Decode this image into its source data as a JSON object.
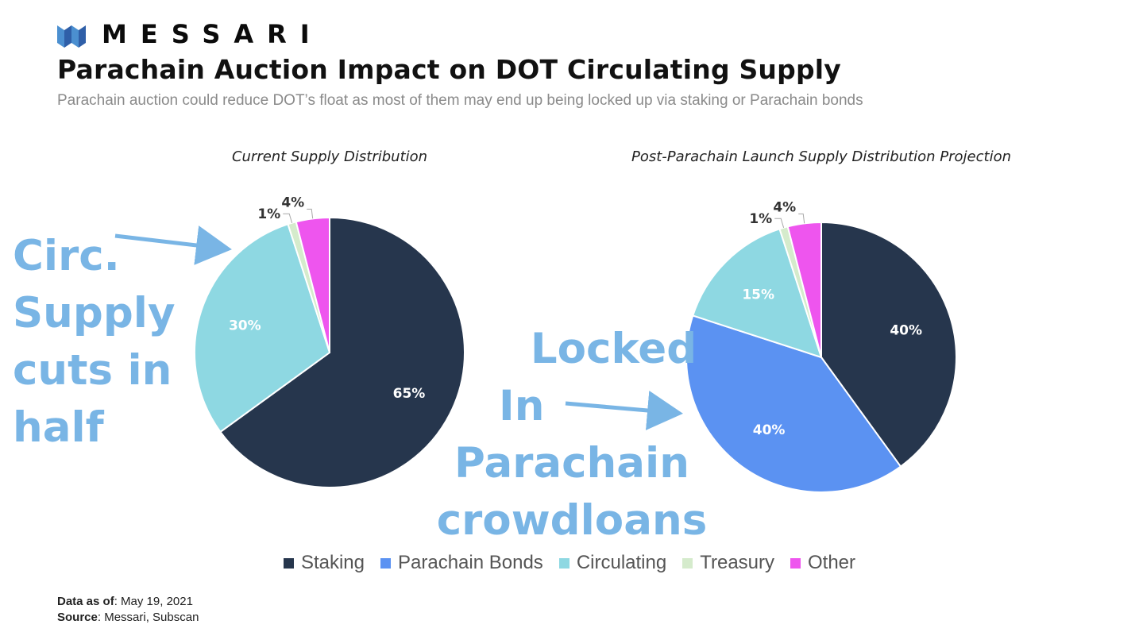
{
  "header": {
    "brand": "MESSARI",
    "title": "Parachain Auction Impact on DOT Circulating Supply",
    "subtitle": "Parachain auction could reduce DOT’s float as most of them may end up being locked up via staking or Parachain bonds"
  },
  "colors": {
    "Staking": "#26364d",
    "Parachain Bonds": "#5b92f2",
    "Circulating": "#8ed8e2",
    "Treasury": "#d5ebcc",
    "Other": "#ee55ee",
    "brand": "#4b8fd0",
    "annotation": "#79b5e5"
  },
  "chart_data": [
    {
      "type": "pie",
      "title": "Current Supply Distribution",
      "slices": [
        {
          "label": "Staking",
          "value": 65,
          "data_label": "65%"
        },
        {
          "label": "Parachain Bonds",
          "value": 0,
          "data_label": ""
        },
        {
          "label": "Circulating",
          "value": 30,
          "data_label": "30%"
        },
        {
          "label": "Treasury",
          "value": 1,
          "data_label": "1%"
        },
        {
          "label": "Other",
          "value": 4,
          "data_label": "4%"
        }
      ],
      "legend_placement": "bottom"
    },
    {
      "type": "pie",
      "title": "Post-Parachain Launch Supply Distribution Projection",
      "slices": [
        {
          "label": "Staking",
          "value": 40,
          "data_label": "40%"
        },
        {
          "label": "Parachain Bonds",
          "value": 40,
          "data_label": "40%"
        },
        {
          "label": "Circulating",
          "value": 15,
          "data_label": "15%"
        },
        {
          "label": "Treasury",
          "value": 1,
          "data_label": "1%"
        },
        {
          "label": "Other",
          "value": 4,
          "data_label": "4%"
        }
      ],
      "legend_placement": "bottom"
    }
  ],
  "legend": [
    {
      "label": "Staking"
    },
    {
      "label": "Parachain Bonds"
    },
    {
      "label": "Circulating"
    },
    {
      "label": "Treasury"
    },
    {
      "label": "Other"
    }
  ],
  "annotations": {
    "left": [
      "Circ.",
      "Supply",
      "cuts in",
      "half"
    ],
    "right": [
      "Locked",
      "In",
      "Parachain",
      "crowdloans"
    ]
  },
  "footer": {
    "data_as_of_label": "Data as of",
    "data_as_of_value": ": May 19, 2021",
    "source_label": "Source",
    "source_value": ": Messari, Subscan"
  }
}
